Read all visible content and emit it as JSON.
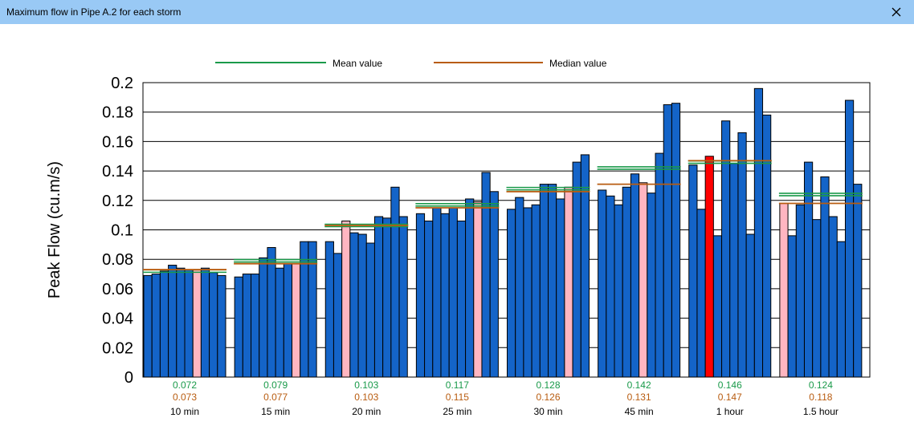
{
  "window": {
    "title": "Maximum flow in Pipe A.2 for each storm",
    "close_icon": "close-icon"
  },
  "colors": {
    "bar": "#1464c8",
    "bar_highlight": "#ff0000",
    "bar_median": "#ffb6c1",
    "mean_line": "#1a9a4a",
    "median_line": "#b85c10"
  },
  "chart_data": {
    "type": "bar",
    "ylabel": "Peak Flow (cu.m/s)",
    "ylim": [
      0,
      0.2
    ],
    "yticks": [
      "0",
      "0.02",
      "0.04",
      "0.06",
      "0.08",
      "0.1",
      "0.12",
      "0.14",
      "0.16",
      "0.18",
      "0.2"
    ],
    "grid": true,
    "legend": [
      {
        "label": "Mean value",
        "color": "#1a9a4a"
      },
      {
        "label": "Median value",
        "color": "#b85c10"
      }
    ],
    "legend_placement": "top",
    "groups": [
      {
        "label": "10 min",
        "mean": 0.072,
        "median": 0.073,
        "mean_text": "0.072",
        "median_text": "0.073",
        "values": [
          0.069,
          0.07,
          0.072,
          0.076,
          0.074,
          0.073,
          0.073,
          0.074,
          0.071,
          0.069
        ],
        "highlight": [
          6
        ]
      },
      {
        "label": "15 min",
        "mean": 0.079,
        "median": 0.077,
        "mean_text": "0.079",
        "median_text": "0.077",
        "values": [
          0.068,
          0.07,
          0.07,
          0.081,
          0.088,
          0.074,
          0.077,
          0.077,
          0.092,
          0.092
        ],
        "highlight": [
          7
        ]
      },
      {
        "label": "20 min",
        "mean": 0.103,
        "median": 0.103,
        "mean_text": "0.103",
        "median_text": "0.103",
        "values": [
          0.092,
          0.084,
          0.106,
          0.098,
          0.097,
          0.091,
          0.109,
          0.108,
          0.129,
          0.109
        ],
        "highlight": [
          2
        ]
      },
      {
        "label": "25 min",
        "mean": 0.117,
        "median": 0.115,
        "mean_text": "0.117",
        "median_text": "0.115",
        "values": [
          0.111,
          0.106,
          0.115,
          0.111,
          0.115,
          0.106,
          0.121,
          0.119,
          0.139,
          0.126
        ],
        "highlight": [
          7
        ]
      },
      {
        "label": "30 min",
        "mean": 0.128,
        "median": 0.126,
        "mean_text": "0.128",
        "median_text": "0.126",
        "values": [
          0.114,
          0.122,
          0.115,
          0.117,
          0.131,
          0.131,
          0.121,
          0.129,
          0.146,
          0.151
        ],
        "highlight": [
          7
        ]
      },
      {
        "label": "45 min",
        "mean": 0.142,
        "median": 0.131,
        "mean_text": "0.142",
        "median_text": "0.131",
        "values": [
          0.127,
          0.123,
          0.117,
          0.129,
          0.138,
          0.132,
          0.125,
          0.152,
          0.185,
          0.186
        ],
        "highlight": [
          5
        ]
      },
      {
        "label": "1 hour",
        "mean": 0.146,
        "median": 0.147,
        "mean_text": "0.146",
        "median_text": "0.147",
        "values": [
          0.144,
          0.114,
          0.15,
          0.096,
          0.174,
          0.145,
          0.166,
          0.097,
          0.196,
          0.178
        ],
        "highlight": [
          2
        ],
        "critical": 2
      },
      {
        "label": "1.5 hour",
        "mean": 0.124,
        "median": 0.118,
        "mean_text": "0.124",
        "median_text": "0.118",
        "values": [
          0.118,
          0.096,
          0.117,
          0.146,
          0.107,
          0.136,
          0.109,
          0.092,
          0.188,
          0.131
        ],
        "highlight": [
          0
        ]
      }
    ]
  }
}
